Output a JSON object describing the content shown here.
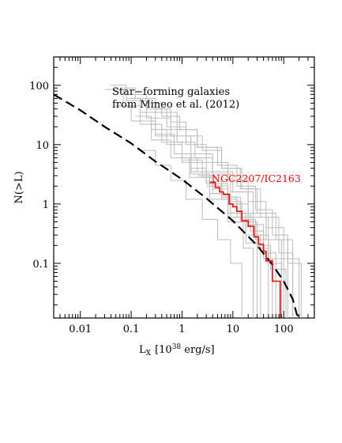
{
  "chart_data": {
    "type": "line",
    "xlabel": "L",
    "xlabel_sub": "X",
    "xlabel_units": "[10",
    "xlabel_exp": "38",
    "xlabel_tail": " erg/s]",
    "ylabel": "N(>L)",
    "x_scale": "log",
    "y_scale": "log",
    "xlim": [
      0.003,
      400
    ],
    "ylim": [
      0.012,
      300
    ],
    "x_ticks": [
      0.01,
      0.1,
      1,
      10,
      100
    ],
    "x_tick_labels": [
      "0.01",
      "0.1",
      "1",
      "10",
      "100"
    ],
    "y_ticks": [
      0.1,
      1,
      10,
      100
    ],
    "y_tick_labels": [
      "0.1",
      "1",
      "10",
      "100"
    ],
    "annotation_line1": "Star−forming galaxies",
    "annotation_line2": "from Mineo et al. (2012)",
    "highlight": {
      "name": "NGC2207/IC2163",
      "color": "#ff0000",
      "points": [
        [
          3.5,
          2.3
        ],
        [
          4.5,
          1.9
        ],
        [
          5.5,
          1.6
        ],
        [
          6.5,
          1.45
        ],
        [
          8.5,
          1.0
        ],
        [
          10,
          0.9
        ],
        [
          12,
          0.75
        ],
        [
          15,
          0.52
        ],
        [
          20,
          0.42
        ],
        [
          26,
          0.28
        ],
        [
          32,
          0.21
        ],
        [
          40,
          0.16
        ],
        [
          45,
          0.11
        ],
        [
          60,
          0.05
        ],
        [
          85,
          0.02
        ]
      ]
    },
    "model_curve": {
      "style": "dashed",
      "color": "#000000",
      "points": [
        [
          0.003,
          70
        ],
        [
          0.01,
          38
        ],
        [
          0.03,
          20
        ],
        [
          0.1,
          10.5
        ],
        [
          0.3,
          5.2
        ],
        [
          1,
          2.6
        ],
        [
          3,
          1.25
        ],
        [
          10,
          0.52
        ],
        [
          30,
          0.2
        ],
        [
          60,
          0.095
        ],
        [
          100,
          0.05
        ],
        [
          150,
          0.025
        ],
        [
          180,
          0.014
        ],
        [
          200,
          0.012
        ]
      ]
    },
    "background_series_color": "#bbbbbb",
    "background_series": [
      {
        "points": [
          [
            0.04,
            100
          ],
          [
            0.08,
            55
          ],
          [
            0.2,
            28
          ],
          [
            0.6,
            14
          ],
          [
            1.5,
            7
          ],
          [
            4,
            3.5
          ],
          [
            10,
            1.6
          ],
          [
            25,
            0.6
          ],
          [
            50,
            0.25
          ],
          [
            120,
            0.06
          ]
        ]
      },
      {
        "points": [
          [
            0.06,
            90
          ],
          [
            0.12,
            60
          ],
          [
            0.3,
            35
          ],
          [
            0.8,
            18
          ],
          [
            2,
            9
          ],
          [
            6,
            4
          ],
          [
            15,
            1.8
          ],
          [
            35,
            0.6
          ],
          [
            80,
            0.15
          ],
          [
            150,
            0.04
          ]
        ]
      },
      {
        "points": [
          [
            0.03,
            85
          ],
          [
            0.07,
            45
          ],
          [
            0.15,
            22
          ],
          [
            0.4,
            11
          ],
          [
            1,
            5
          ],
          [
            3,
            2.2
          ],
          [
            8,
            1.0
          ],
          [
            20,
            0.45
          ],
          [
            40,
            0.12
          ],
          [
            60,
            0.04
          ]
        ]
      },
      {
        "points": [
          [
            0.1,
            70
          ],
          [
            0.2,
            40
          ],
          [
            0.5,
            20
          ],
          [
            1.2,
            10
          ],
          [
            3,
            5
          ],
          [
            8,
            2.5
          ],
          [
            20,
            1.1
          ],
          [
            45,
            0.4
          ],
          [
            100,
            0.12
          ],
          [
            200,
            0.04
          ]
        ]
      },
      {
        "points": [
          [
            0.08,
            60
          ],
          [
            0.15,
            35
          ],
          [
            0.3,
            15
          ],
          [
            0.7,
            7
          ],
          [
            1.5,
            3.5
          ],
          [
            4,
            1.5
          ],
          [
            9,
            0.6
          ],
          [
            18,
            0.22
          ],
          [
            30,
            0.07
          ]
        ]
      },
      {
        "points": [
          [
            0.2,
            50
          ],
          [
            0.4,
            30
          ],
          [
            0.9,
            18
          ],
          [
            2,
            9
          ],
          [
            5,
            4.5
          ],
          [
            12,
            2
          ],
          [
            28,
            0.8
          ],
          [
            60,
            0.3
          ],
          [
            120,
            0.1
          ],
          [
            220,
            0.04
          ]
        ]
      },
      {
        "points": [
          [
            0.05,
            45
          ],
          [
            0.1,
            25
          ],
          [
            0.25,
            12
          ],
          [
            0.6,
            6
          ],
          [
            1.4,
            2.8
          ],
          [
            3.5,
            1.2
          ],
          [
            8,
            0.5
          ],
          [
            16,
            0.18
          ],
          [
            25,
            0.05
          ]
        ]
      },
      {
        "points": [
          [
            0.3,
            40
          ],
          [
            0.6,
            24
          ],
          [
            1.2,
            14
          ],
          [
            2.5,
            8
          ],
          [
            6,
            4
          ],
          [
            14,
            1.8
          ],
          [
            30,
            0.7
          ],
          [
            70,
            0.25
          ],
          [
            150,
            0.08
          ]
        ]
      },
      {
        "points": [
          [
            0.12,
            30
          ],
          [
            0.25,
            18
          ],
          [
            0.5,
            10
          ],
          [
            1,
            5.5
          ],
          [
            2.5,
            2.8
          ],
          [
            6,
            1.3
          ],
          [
            14,
            0.5
          ],
          [
            30,
            0.18
          ],
          [
            50,
            0.05
          ]
        ]
      },
      {
        "points": [
          [
            0.15,
            25
          ],
          [
            0.3,
            14
          ],
          [
            0.7,
            7
          ],
          [
            1.5,
            3.2
          ],
          [
            3.5,
            1.5
          ],
          [
            8,
            0.7
          ],
          [
            18,
            0.3
          ],
          [
            35,
            0.1
          ]
        ]
      },
      {
        "points": [
          [
            0.4,
            18
          ],
          [
            0.8,
            11
          ],
          [
            1.8,
            6
          ],
          [
            4,
            3.2
          ],
          [
            9,
            1.6
          ],
          [
            20,
            0.7
          ],
          [
            45,
            0.25
          ],
          [
            90,
            0.08
          ]
        ]
      },
      {
        "points": [
          [
            0.16,
            8
          ],
          [
            0.3,
            4.5
          ],
          [
            0.6,
            2.5
          ],
          [
            1.2,
            1.2
          ],
          [
            2.5,
            0.55
          ],
          [
            5,
            0.25
          ],
          [
            9,
            0.1
          ],
          [
            15,
            0.03
          ]
        ]
      },
      {
        "points": [
          [
            1.1,
            6
          ],
          [
            2,
            3.5
          ],
          [
            4,
            2
          ],
          [
            8,
            1.1
          ],
          [
            15,
            0.55
          ],
          [
            28,
            0.25
          ],
          [
            50,
            0.1
          ],
          [
            90,
            0.03
          ]
        ]
      },
      {
        "points": [
          [
            1.5,
            4
          ],
          [
            3,
            2.4
          ],
          [
            6,
            1.3
          ],
          [
            12,
            0.7
          ],
          [
            22,
            0.35
          ],
          [
            40,
            0.15
          ],
          [
            70,
            0.05
          ]
        ]
      },
      {
        "points": [
          [
            2,
            3
          ],
          [
            4,
            1.8
          ],
          [
            8,
            1.0
          ],
          [
            15,
            0.5
          ],
          [
            30,
            0.2
          ],
          [
            55,
            0.08
          ],
          [
            110,
            0.025
          ]
        ]
      },
      {
        "points": [
          [
            3,
            2
          ],
          [
            6,
            1.2
          ],
          [
            12,
            0.6
          ],
          [
            25,
            0.3
          ],
          [
            50,
            0.12
          ],
          [
            100,
            0.04
          ]
        ]
      }
    ]
  }
}
